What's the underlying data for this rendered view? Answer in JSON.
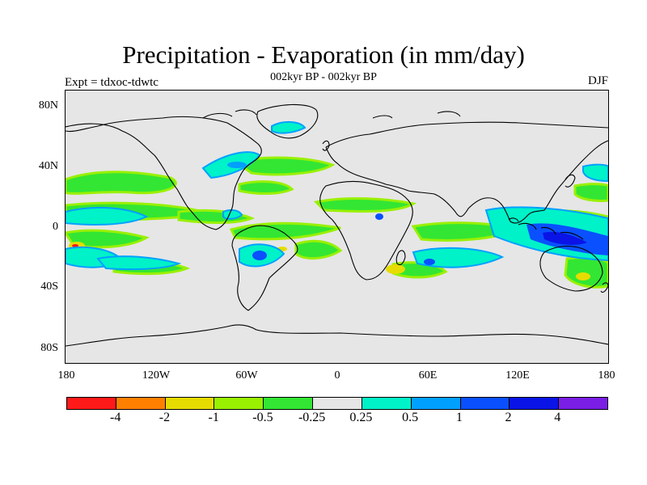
{
  "title": "Precipitation - Evaporation (in mm/day)",
  "subtitle": "002kyr BP - 002kyr BP",
  "expt_label": "Expt = tdxoc-tdwtc",
  "season": "DJF",
  "map": {
    "background_color": "#e6e6e6",
    "coastline_color": "#000000",
    "projection": "cylindrical equidistant",
    "lon_range": [
      -180,
      180
    ],
    "lat_range": [
      -90,
      90
    ]
  },
  "axes": {
    "y_ticks": [
      "80N",
      "40N",
      "0",
      "40S",
      "80S"
    ],
    "x_ticks": [
      "180",
      "120W",
      "60W",
      "0",
      "60E",
      "120E",
      "180"
    ]
  },
  "colorbar": {
    "colors": [
      "#ff1a1a",
      "#ff8000",
      "#e6dc00",
      "#99f000",
      "#33e633",
      "#e6e6e6",
      "#00f2c8",
      "#00a0ff",
      "#0a50ff",
      "#0a14e6",
      "#7a1ee6"
    ],
    "labels": [
      "-4",
      "-2",
      "-1",
      "-0.5",
      "-0.25",
      "0.25",
      "0.5",
      "1",
      "2",
      "4"
    ]
  }
}
